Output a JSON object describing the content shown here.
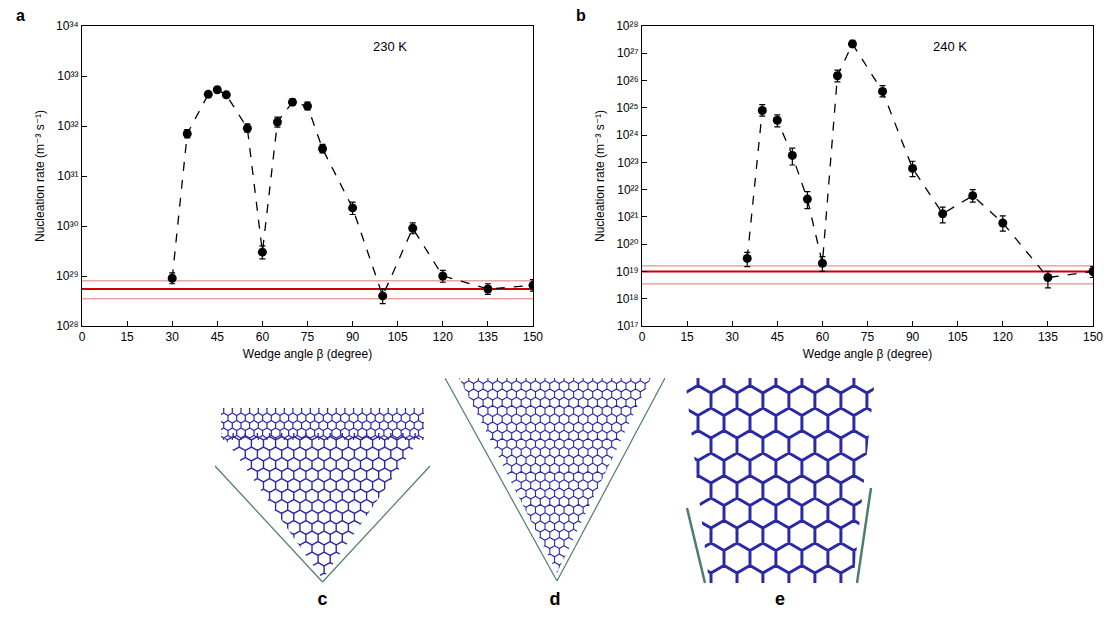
{
  "chart_data": [
    {
      "type": "scatter",
      "label": "a",
      "annotations": [
        "230 K"
      ],
      "x_label": "Wedge angle β (degree)",
      "y_label": "Nucleation rate (m⁻³ s⁻¹)",
      "x": [
        30,
        35,
        42,
        45,
        48,
        55,
        60,
        65,
        70,
        75,
        80,
        90,
        100,
        110,
        120,
        135,
        150
      ],
      "values": [
        9e+28,
        7e+31,
        4.3e+32,
        5.3e+32,
        4.2e+32,
        9e+31,
        3e+29,
        1.2e+32,
        3e+32,
        2.5e+32,
        3.5e+31,
        2.3e+30,
        4e+28,
        9e+29,
        1e+29,
        5.5e+28,
        6.5e+28
      ],
      "error_plus": [
        2.5e+28,
        1.5e+31,
        5e+31,
        6e+31,
        5e+31,
        2e+31,
        1e+29,
        3e+31,
        5e+31,
        5e+31,
        8e+30,
        7e+29,
        1.5e+28,
        2.5e+29,
        3e+28,
        1.5e+28,
        2e+28
      ],
      "error_minus": [
        2e+28,
        1.2e+31,
        4e+31,
        5e+31,
        4e+31,
        1.5e+31,
        8e+28,
        2.5e+31,
        4e+31,
        4e+31,
        6e+30,
        6e+29,
        1.2e+28,
        2e+29,
        2.5e+28,
        1.2e+28,
        1.5e+28
      ],
      "color": "#000000",
      "marker": "circle",
      "line_style": "dashed",
      "reference": {
        "value": 5.5e+28,
        "lower": 3.5e+28,
        "upper": 8e+28,
        "color": "#cc0000"
      },
      "log": "y",
      "grid": false,
      "xlim": [
        0,
        150
      ],
      "xticks": [
        0,
        15,
        30,
        45,
        60,
        75,
        90,
        105,
        120,
        135,
        150
      ],
      "ylim": [
        1e+28,
        1e+34
      ],
      "yticks": [
        {
          "value": 1e+28,
          "label": "10²⁸"
        },
        {
          "value": 1e+29,
          "label": "10²⁹"
        },
        {
          "value": 1e+30,
          "label": "10³⁰"
        },
        {
          "value": 1e+31,
          "label": "10³¹"
        },
        {
          "value": 1e+32,
          "label": "10³²"
        },
        {
          "value": 1e+33,
          "label": "10³³"
        },
        {
          "value": 1e+34,
          "label": "10³⁴"
        }
      ]
    },
    {
      "type": "scatter",
      "label": "b",
      "annotations": [
        "240 K"
      ],
      "x_label": "Wedge angle β (degree)",
      "y_label": "Nucleation rate (m⁻³ s⁻¹)",
      "x": [
        35,
        40,
        45,
        50,
        55,
        60,
        65,
        70,
        80,
        90,
        100,
        110,
        120,
        135,
        150
      ],
      "values": [
        3e+19,
        8e+24,
        3.5e+24,
        1.8e+23,
        4.5e+21,
        2e+19,
        1.5e+26,
        2.2e+27,
        4e+25,
        6e+22,
        1.3e+21,
        6e+21,
        6e+20,
        6e+18,
        1e+19
      ],
      "error_plus": [
        2e+19,
        5e+24,
        2e+24,
        1.5e+23,
        4e+21,
        1.5e+19,
        9e+25,
        8e+26,
        2.5e+25,
        5e+22,
        1e+21,
        4e+21,
        5e+20,
        4e+18,
        5e+18
      ],
      "error_minus": [
        1.5e+19,
        3e+24,
        1.5e+24,
        1e+23,
        2.5e+21,
        1e+19,
        6e+25,
        5e+26,
        1.5e+25,
        3e+22,
        7e+20,
        2.5e+21,
        3e+20,
        3.5e+18,
        4e+18
      ],
      "color": "#000000",
      "marker": "circle",
      "line_style": "dashed",
      "reference": {
        "value": 1e+19,
        "lower": 3.5e+18,
        "upper": 1.6e+19,
        "color": "#cc0000"
      },
      "log": "y",
      "grid": false,
      "xlim": [
        0,
        150
      ],
      "xticks": [
        0,
        15,
        30,
        45,
        60,
        75,
        90,
        105,
        120,
        135,
        150
      ],
      "ylim": [
        1e+17,
        1e+28
      ],
      "yticks": [
        {
          "value": 1e+17,
          "label": "10¹⁷"
        },
        {
          "value": 1e+18,
          "label": "10¹⁸"
        },
        {
          "value": 1e+19,
          "label": "10¹⁹"
        },
        {
          "value": 1e+20,
          "label": "10²⁰"
        },
        {
          "value": 1e+21,
          "label": "10²¹"
        },
        {
          "value": 1e+22,
          "label": "10²²"
        },
        {
          "value": 1e+23,
          "label": "10²³"
        },
        {
          "value": 1e+24,
          "label": "10²⁴"
        },
        {
          "value": 1e+25,
          "label": "10²⁵"
        },
        {
          "value": 1e+26,
          "label": "10²⁶"
        },
        {
          "value": 1e+27,
          "label": "10²⁷"
        },
        {
          "value": 1e+28,
          "label": "10²⁸"
        }
      ]
    }
  ],
  "panels": [
    {
      "label": "c"
    },
    {
      "label": "d"
    },
    {
      "label": "e"
    }
  ]
}
